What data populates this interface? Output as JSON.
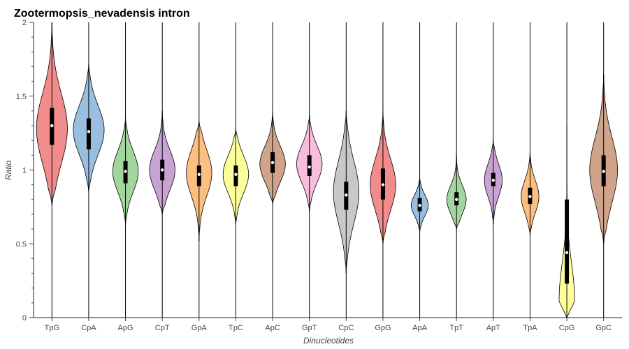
{
  "chart_data": {
    "type": "violin",
    "title": "Zootermopsis_nevadensis intron",
    "xlabel": "Dinucleotides",
    "ylabel": "Ratio",
    "ylim": [
      0,
      2
    ],
    "yticks": [
      0,
      0.5,
      1,
      1.5,
      2
    ],
    "ytick_labels": [
      "0",
      "0.5",
      "1",
      "1.5",
      "2"
    ],
    "grid": false,
    "categories": [
      "TpG",
      "CpA",
      "ApG",
      "CpT",
      "GpA",
      "TpC",
      "ApC",
      "GpT",
      "CpC",
      "GpG",
      "ApA",
      "TpT",
      "ApT",
      "TpA",
      "CpG",
      "GpC"
    ],
    "colors": [
      "#f28b8b",
      "#99bedf",
      "#a3d69e",
      "#c9a3d3",
      "#fdbf80",
      "#ffff99",
      "#cfa48b",
      "#f8bcdc",
      "#c8c8c8",
      "#f28b8b",
      "#99bedf",
      "#a3d69e",
      "#c9a3d3",
      "#fdbf80",
      "#ffff99",
      "#cfa48b"
    ],
    "series": [
      {
        "category": "TpG",
        "median": 1.3,
        "q1": 1.17,
        "q3": 1.42,
        "vmin": 0.0,
        "vmax": 2.0,
        "kde_low": 0.76,
        "kde_high": 2.0,
        "mode": 1.28,
        "width": 0.4
      },
      {
        "category": "CpA",
        "median": 1.26,
        "q1": 1.14,
        "q3": 1.35,
        "vmin": 0.0,
        "vmax": 2.0,
        "kde_low": 0.85,
        "kde_high": 1.72,
        "mode": 1.27,
        "width": 0.4
      },
      {
        "category": "ApG",
        "median": 0.99,
        "q1": 0.91,
        "q3": 1.06,
        "vmin": 0.0,
        "vmax": 2.0,
        "kde_low": 0.63,
        "kde_high": 1.35,
        "mode": 0.99,
        "width": 0.33
      },
      {
        "category": "CpT",
        "median": 1.0,
        "q1": 0.93,
        "q3": 1.07,
        "vmin": 0.0,
        "vmax": 2.0,
        "kde_low": 0.7,
        "kde_high": 1.4,
        "mode": 1.0,
        "width": 0.33
      },
      {
        "category": "GpA",
        "median": 0.97,
        "q1": 0.89,
        "q3": 1.03,
        "vmin": 0.0,
        "vmax": 2.0,
        "kde_low": 0.52,
        "kde_high": 1.33,
        "mode": 0.98,
        "width": 0.33
      },
      {
        "category": "TpC",
        "median": 0.97,
        "q1": 0.89,
        "q3": 1.03,
        "vmin": 0.0,
        "vmax": 2.0,
        "kde_low": 0.62,
        "kde_high": 1.28,
        "mode": 0.97,
        "width": 0.33
      },
      {
        "category": "ApC",
        "median": 1.05,
        "q1": 0.98,
        "q3": 1.12,
        "vmin": 0.0,
        "vmax": 2.0,
        "kde_low": 0.77,
        "kde_high": 1.4,
        "mode": 1.04,
        "width": 0.33
      },
      {
        "category": "GpT",
        "median": 1.02,
        "q1": 0.96,
        "q3": 1.1,
        "vmin": 0.0,
        "vmax": 2.0,
        "kde_low": 0.72,
        "kde_high": 1.37,
        "mode": 1.04,
        "width": 0.33
      },
      {
        "category": "CpC",
        "median": 0.83,
        "q1": 0.73,
        "q3": 0.92,
        "vmin": 0.0,
        "vmax": 2.0,
        "kde_low": 0.3,
        "kde_high": 1.4,
        "mode": 0.85,
        "width": 0.33
      },
      {
        "category": "GpG",
        "median": 0.9,
        "q1": 0.8,
        "q3": 1.01,
        "vmin": 0.0,
        "vmax": 2.0,
        "kde_low": 0.5,
        "kde_high": 1.4,
        "mode": 0.9,
        "width": 0.33
      },
      {
        "category": "ApA",
        "median": 0.76,
        "q1": 0.72,
        "q3": 0.81,
        "vmin": 0.0,
        "vmax": 2.0,
        "kde_low": 0.58,
        "kde_high": 0.95,
        "mode": 0.76,
        "width": 0.22
      },
      {
        "category": "TpT",
        "median": 0.8,
        "q1": 0.76,
        "q3": 0.85,
        "vmin": 0.0,
        "vmax": 2.0,
        "kde_low": 0.6,
        "kde_high": 1.1,
        "mode": 0.8,
        "width": 0.25
      },
      {
        "category": "ApT",
        "median": 0.93,
        "q1": 0.89,
        "q3": 0.98,
        "vmin": 0.0,
        "vmax": 2.0,
        "kde_low": 0.63,
        "kde_high": 1.2,
        "mode": 0.93,
        "width": 0.23
      },
      {
        "category": "TpA",
        "median": 0.82,
        "q1": 0.77,
        "q3": 0.88,
        "vmin": 0.0,
        "vmax": 2.0,
        "kde_low": 0.56,
        "kde_high": 1.12,
        "mode": 0.82,
        "width": 0.23
      },
      {
        "category": "CpG",
        "median": 0.44,
        "q1": 0.23,
        "q3": 0.8,
        "vmin": 0.0,
        "vmax": 2.0,
        "kde_low": 0.0,
        "kde_high": 1.3,
        "mode": 0.12,
        "width": 0.2
      },
      {
        "category": "GpC",
        "median": 0.99,
        "q1": 0.89,
        "q3": 1.1,
        "vmin": 0.0,
        "vmax": 2.0,
        "kde_low": 0.5,
        "kde_high": 1.65,
        "mode": 1.0,
        "width": 0.36
      }
    ]
  }
}
